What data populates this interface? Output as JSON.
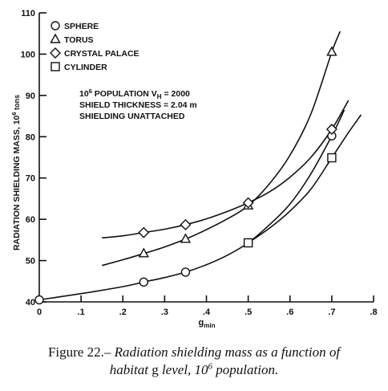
{
  "chart_data": {
    "type": "line",
    "ylabel": "RADIATION SHIELDING MASS, 10",
    "ylabel_exp": "6",
    "ylabel_unit": " tons",
    "xlabel_base": "g",
    "xlabel_sub": "min",
    "xlim": [
      0,
      0.8
    ],
    "ylim": [
      40,
      110
    ],
    "xticks": [
      0,
      0.1,
      0.2,
      0.3,
      0.4,
      0.5,
      0.6,
      0.7,
      0.8
    ],
    "xtick_labels": [
      "0",
      ".1",
      ".2",
      ".3",
      ".4",
      ".5",
      ".6",
      ".7",
      ".8"
    ],
    "yticks": [
      40,
      50,
      60,
      70,
      80,
      90,
      100,
      110
    ],
    "ytick_labels": [
      "40",
      "50",
      "60",
      "70",
      "80",
      "90",
      "100",
      "110"
    ],
    "legend_position": "top-left",
    "series": [
      {
        "name": "SPHERE",
        "marker": "circle",
        "points": [
          [
            0,
            40.5
          ],
          [
            0.25,
            44.8
          ],
          [
            0.35,
            47.2
          ],
          [
            0.5,
            54.3
          ],
          [
            0.7,
            80.2
          ]
        ],
        "curve": [
          [
            0,
            40.5
          ],
          [
            0.1,
            42.0
          ],
          [
            0.2,
            43.7
          ],
          [
            0.25,
            44.8
          ],
          [
            0.3,
            45.9
          ],
          [
            0.35,
            47.2
          ],
          [
            0.4,
            49.0
          ],
          [
            0.45,
            51.3
          ],
          [
            0.5,
            54.3
          ],
          [
            0.55,
            58.6
          ],
          [
            0.6,
            63.7
          ],
          [
            0.65,
            71.0
          ],
          [
            0.7,
            80.2
          ],
          [
            0.73,
            86.5
          ]
        ]
      },
      {
        "name": "TORUS",
        "marker": "triangle",
        "points": [
          [
            0.25,
            51.7
          ],
          [
            0.35,
            55.2
          ],
          [
            0.5,
            63.3
          ],
          [
            0.7,
            100.5
          ]
        ],
        "curve": [
          [
            0.15,
            48.8
          ],
          [
            0.2,
            50.2
          ],
          [
            0.25,
            51.7
          ],
          [
            0.3,
            53.3
          ],
          [
            0.35,
            55.2
          ],
          [
            0.4,
            57.5
          ],
          [
            0.45,
            60.1
          ],
          [
            0.5,
            63.3
          ],
          [
            0.55,
            68.5
          ],
          [
            0.6,
            75.5
          ],
          [
            0.65,
            85.5
          ],
          [
            0.7,
            100.5
          ],
          [
            0.72,
            105.5
          ]
        ]
      },
      {
        "name": "CRYSTAL PALACE",
        "marker": "diamond",
        "points": [
          [
            0.25,
            56.8
          ],
          [
            0.35,
            58.7
          ],
          [
            0.5,
            64.0
          ],
          [
            0.7,
            81.8
          ]
        ],
        "curve": [
          [
            0.15,
            55.5
          ],
          [
            0.2,
            56.0
          ],
          [
            0.25,
            56.8
          ],
          [
            0.3,
            57.6
          ],
          [
            0.35,
            58.7
          ],
          [
            0.4,
            60.1
          ],
          [
            0.45,
            61.9
          ],
          [
            0.5,
            64.0
          ],
          [
            0.55,
            66.6
          ],
          [
            0.6,
            70.2
          ],
          [
            0.65,
            75.0
          ],
          [
            0.7,
            81.8
          ],
          [
            0.74,
            88.8
          ]
        ]
      },
      {
        "name": "CYLINDER",
        "marker": "square",
        "points": [
          [
            0.5,
            54.3
          ],
          [
            0.7,
            74.9
          ]
        ],
        "curve": [
          [
            0.5,
            54.3
          ],
          [
            0.55,
            57.8
          ],
          [
            0.6,
            62.0
          ],
          [
            0.65,
            67.3
          ],
          [
            0.7,
            74.9
          ],
          [
            0.74,
            81.0
          ],
          [
            0.77,
            85.3
          ]
        ]
      }
    ],
    "annotations": {
      "line1_prefix": "10",
      "line1_exp": "6",
      "line1_mid": " POPULATION V",
      "line1_sub": "H",
      "line1_suffix": " = 2000",
      "line2": "SHIELD THICKNESS = 2.04 m",
      "line3": "SHIELDING UNATTACHED"
    }
  },
  "caption": {
    "label": "Figure 22.–",
    "line1_text": " Radiation shielding mass as a function of",
    "line2_a": "habitat ",
    "line2_g": "g",
    "line2_b": " level, 10",
    "line2_exp": "6",
    "line2_c": " population."
  }
}
